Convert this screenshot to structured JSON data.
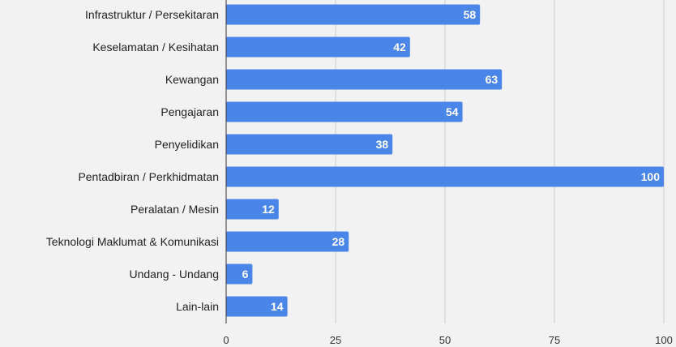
{
  "chart_data": {
    "type": "bar",
    "orientation": "horizontal",
    "categories": [
      "Infrastruktur / Persekitaran",
      "Keselamatan / Kesihatan",
      "Kewangan",
      "Pengajaran",
      "Penyelidikan",
      "Pentadbiran / Perkhidmatan",
      "Peralatan / Mesin",
      "Teknologi Maklumat & Komunikasi",
      "Undang - Undang",
      "Lain-lain"
    ],
    "values": [
      58,
      42,
      63,
      54,
      38,
      100,
      12,
      28,
      6,
      14
    ],
    "value_labels": [
      "58",
      "42",
      "63",
      "54",
      "38",
      "100",
      "12",
      "28",
      "6",
      "14"
    ],
    "x_ticks": [
      0,
      25,
      50,
      75,
      100
    ],
    "x_tick_labels": [
      "0",
      "25",
      "50",
      "75",
      "100"
    ],
    "xlim": [
      0,
      100
    ],
    "grid": "vertical",
    "data_labels": "inside-end",
    "title": "",
    "xlabel": "",
    "ylabel": "",
    "colors": {
      "bar": "#4a86e8",
      "grid": "#cccccc",
      "axis": "#333333",
      "background": "#f2f2f2"
    }
  }
}
